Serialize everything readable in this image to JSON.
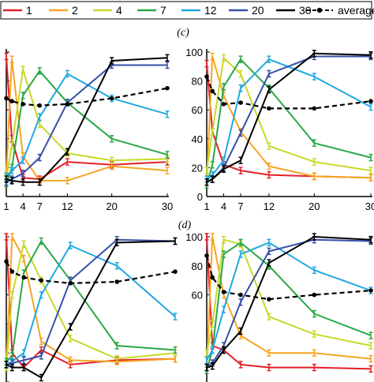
{
  "legend": {
    "entries": [
      {
        "label": "1",
        "color": "#e3202a",
        "style": "solid"
      },
      {
        "label": "2",
        "color": "#f5a623",
        "style": "solid"
      },
      {
        "label": "4",
        "color": "#c8d82a",
        "style": "solid"
      },
      {
        "label": "7",
        "color": "#2aa845",
        "style": "solid"
      },
      {
        "label": "12",
        "color": "#22a8e0",
        "style": "solid"
      },
      {
        "label": "20",
        "color": "#3550a8",
        "style": "solid"
      },
      {
        "label": "30",
        "color": "#000000",
        "style": "solid"
      },
      {
        "label": "average",
        "color": "#000000",
        "style": "dashed-dot"
      }
    ]
  },
  "panel_labels": [
    "(c)",
    "(d)"
  ],
  "chart_data": [
    {
      "type": "line",
      "x": [
        1,
        2,
        4,
        7,
        12,
        20,
        30
      ],
      "xticks": [
        "1",
        "4",
        "7",
        "12",
        "20",
        "30"
      ],
      "yticks": [],
      "xlim": [
        1,
        30
      ],
      "ylim": [
        0,
        100
      ],
      "series": [
        {
          "name": "1",
          "values": [
            97,
            40,
            13,
            12,
            24,
            22,
            24
          ]
        },
        {
          "name": "2",
          "values": [
            15,
            95,
            28,
            11,
            11,
            21,
            18
          ]
        },
        {
          "name": "4",
          "values": [
            13,
            35,
            88,
            50,
            30,
            25,
            26
          ]
        },
        {
          "name": "7",
          "values": [
            9,
            20,
            70,
            87,
            65,
            40,
            29
          ]
        },
        {
          "name": "12",
          "values": [
            14,
            18,
            25,
            55,
            85,
            68,
            57
          ]
        },
        {
          "name": "20",
          "values": [
            10,
            12,
            16,
            27,
            65,
            91,
            91
          ]
        },
        {
          "name": "30",
          "values": [
            12,
            11,
            10,
            10,
            31,
            94,
            96
          ]
        },
        {
          "name": "average",
          "values": [
            68,
            66,
            64,
            63,
            64,
            68,
            75
          ]
        }
      ]
    },
    {
      "type": "line",
      "x": [
        1,
        2,
        4,
        7,
        12,
        20,
        30
      ],
      "xticks": [
        "1",
        "4",
        "7",
        "12",
        "20",
        "30"
      ],
      "yticks": [
        "0",
        "20",
        "40",
        "60",
        "80",
        "100"
      ],
      "xlim": [
        1,
        30
      ],
      "ylim": [
        0,
        100
      ],
      "series": [
        {
          "name": "1",
          "values": [
            92,
            45,
            22,
            18,
            15,
            14,
            13
          ]
        },
        {
          "name": "2",
          "values": [
            10,
            97,
            70,
            45,
            21,
            14,
            13
          ]
        },
        {
          "name": "4",
          "values": [
            18,
            45,
            96,
            85,
            35,
            24,
            18
          ]
        },
        {
          "name": "7",
          "values": [
            8,
            22,
            76,
            95,
            75,
            37,
            27
          ]
        },
        {
          "name": "12",
          "values": [
            12,
            15,
            25,
            75,
            95,
            83,
            62
          ]
        },
        {
          "name": "20",
          "values": [
            10,
            12,
            20,
            44,
            85,
            97,
            97
          ]
        },
        {
          "name": "30",
          "values": [
            10,
            12,
            19,
            25,
            74,
            99,
            98
          ]
        },
        {
          "name": "average",
          "values": [
            83,
            73,
            64,
            65,
            61,
            61,
            66
          ]
        }
      ]
    },
    {
      "type": "line",
      "x": [
        1,
        2,
        4,
        7,
        12,
        20,
        30
      ],
      "xticks": [],
      "yticks": [],
      "xlim": [
        1,
        30
      ],
      "ylim": [
        0,
        100
      ],
      "series": [
        {
          "name": "1",
          "values": [
            100,
            20,
            10,
            22,
            12,
            15,
            16
          ]
        },
        {
          "name": "2",
          "values": [
            12,
            100,
            85,
            28,
            15,
            14,
            16
          ]
        },
        {
          "name": "4",
          "values": [
            10,
            60,
            95,
            70,
            30,
            16,
            20
          ]
        },
        {
          "name": "7",
          "values": [
            14,
            18,
            75,
            97,
            70,
            25,
            22
          ]
        },
        {
          "name": "12",
          "values": [
            12,
            14,
            20,
            60,
            94,
            80,
            45
          ]
        },
        {
          "name": "20",
          "values": [
            12,
            13,
            15,
            18,
            70,
            98,
            97
          ]
        },
        {
          "name": "30",
          "values": [
            12,
            10,
            10,
            3,
            38,
            96,
            97
          ]
        },
        {
          "name": "average",
          "values": [
            83,
            76,
            72,
            70,
            68,
            69,
            76
          ]
        }
      ]
    },
    {
      "type": "line",
      "x": [
        1,
        2,
        4,
        7,
        12,
        20,
        30
      ],
      "xticks": [],
      "yticks": [
        "60",
        "80",
        "100"
      ],
      "xlim": [
        1,
        30
      ],
      "ylim": [
        0,
        100
      ],
      "series": [
        {
          "name": "1",
          "values": [
            100,
            25,
            22,
            12,
            10,
            10,
            9
          ]
        },
        {
          "name": "2",
          "values": [
            10,
            100,
            60,
            32,
            20,
            20,
            16
          ]
        },
        {
          "name": "4",
          "values": [
            20,
            40,
            98,
            95,
            45,
            33,
            25
          ]
        },
        {
          "name": "7",
          "values": [
            8,
            22,
            88,
            96,
            80,
            47,
            32
          ]
        },
        {
          "name": "12",
          "values": [
            15,
            22,
            50,
            88,
            96,
            77,
            63
          ]
        },
        {
          "name": "20",
          "values": [
            10,
            13,
            25,
            55,
            90,
            98,
            97
          ]
        },
        {
          "name": "30",
          "values": [
            10,
            11,
            22,
            35,
            82,
            100,
            98
          ]
        },
        {
          "name": "average",
          "values": [
            87,
            72,
            62,
            60,
            57,
            60,
            63
          ]
        }
      ]
    }
  ]
}
